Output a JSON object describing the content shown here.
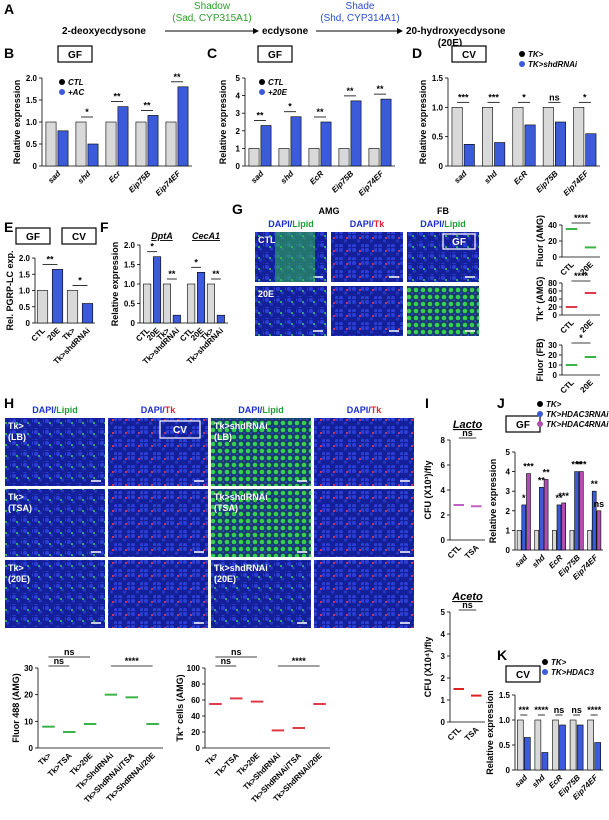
{
  "panel_A": {
    "letter": "A",
    "start": "2-deoxyecdysone",
    "enzyme1_name": "Shadow",
    "enzyme1_detail": "(Sad, CYP315A1)",
    "mid": "ecdysone",
    "enzyme2_name": "Shade",
    "enzyme2_detail": "(Shd, CYP314A1)",
    "end": "20-hydroxyecdysone",
    "end_abbr": "(20E)"
  },
  "panel_G_images": {
    "letter": "G",
    "region1": "AMG",
    "region2": "FB",
    "columns": [
      "DAPI/Lipid",
      "DAPI/Tk",
      "DAPI/Lipid"
    ],
    "rows": [
      "CTL",
      "20E"
    ],
    "tag": "GF"
  },
  "panel_H_images": {
    "letter": "H",
    "columns": [
      "DAPI/Lipid",
      "DAPI/Tk",
      "DAPI/Lipid",
      "DAPI/Tk"
    ],
    "rows_left": [
      [
        "Tk>",
        "(LB)"
      ],
      [
        "Tk>",
        "(TSA)"
      ],
      [
        "Tk>",
        "(20E)"
      ]
    ],
    "rows_right": [
      [
        "Tk>shdRNAi",
        "(LB)"
      ],
      [
        "Tk>shdRNAi",
        "(TSA)"
      ],
      [
        "Tk>shdRNAi",
        "(20E)"
      ]
    ],
    "tag": "CV"
  },
  "chart_data": [
    {
      "type": "bar",
      "letter": "B",
      "tags": [
        "GF"
      ],
      "ylabel": "Relative expression",
      "categories": [
        "sad",
        "shd",
        "Ecr",
        "Eip75B",
        "Eip74EF"
      ],
      "series": [
        {
          "name": "CTL",
          "color": "#d9d9d9",
          "values": [
            1,
            1,
            1,
            1,
            1
          ]
        },
        {
          "name": "+AC",
          "color": "#3b5bdb",
          "values": [
            0.8,
            0.5,
            1.35,
            1.15,
            1.8
          ]
        }
      ],
      "sig": [
        "",
        "*",
        "**",
        "**",
        "**"
      ],
      "ylim": [
        0,
        2
      ],
      "yticks": [
        0,
        0.5,
        {
          "value": 1,
          "label": "1.0"
        },
        1.5,
        {
          "value": 2,
          "label": "2.0"
        }
      ]
    },
    {
      "type": "bar",
      "letter": "C",
      "tags": [
        "GF"
      ],
      "ylabel": "Relative expression",
      "categories": [
        "sad",
        "shd",
        "EcR",
        "Eip75B",
        "Eip74EF"
      ],
      "series": [
        {
          "name": "CTL",
          "color": "#d9d9d9",
          "values": [
            1,
            1,
            1,
            1,
            1
          ]
        },
        {
          "name": "+20E",
          "color": "#3b5bdb",
          "values": [
            2.3,
            2.8,
            2.5,
            3.7,
            3.8
          ]
        }
      ],
      "sig": [
        "**",
        "*",
        "**",
        "**",
        "**"
      ],
      "ylim": [
        0,
        5
      ],
      "yticks": [
        0,
        1,
        2,
        3,
        4,
        5
      ]
    },
    {
      "type": "bar",
      "letter": "D",
      "tags": [
        "CV"
      ],
      "ylabel": "Relative expression",
      "categories": [
        "sad",
        "shd",
        "EcR",
        "Eip75B",
        "Eip74EF"
      ],
      "series": [
        {
          "name": "TK>",
          "color": "#d9d9d9",
          "values": [
            1,
            1,
            1,
            1,
            1
          ]
        },
        {
          "name": "TK>shdRNAi",
          "color": "#3b5bdb",
          "values": [
            0.37,
            0.4,
            0.7,
            0.75,
            0.55
          ]
        }
      ],
      "sig": [
        "***",
        "***",
        "*",
        "ns",
        "*"
      ],
      "ylim": [
        0,
        1.5
      ],
      "yticks": [
        0,
        0.5,
        {
          "value": 1,
          "label": "1.0"
        },
        1.5
      ]
    },
    {
      "type": "bar",
      "letter": "E",
      "tags": [
        "GF",
        "CV"
      ],
      "ylabel": "Rel. PGRP-LC exp.",
      "categories": [
        "CTL",
        "20E",
        "Tk>",
        "Tk>shdRNAi"
      ],
      "values": [
        1,
        1.65,
        1,
        0.6
      ],
      "colors": [
        "#d9d9d9",
        "#3b5bdb",
        "#d9d9d9",
        "#3b5bdb"
      ],
      "sig": [
        "**",
        "*"
      ],
      "ylim": [
        0,
        2
      ],
      "yticks": [
        0,
        0.5,
        {
          "value": 1,
          "label": "1.0"
        },
        1.5,
        {
          "value": 2,
          "label": "2.0"
        }
      ]
    },
    {
      "type": "bar",
      "letter": "F",
      "tags": [],
      "ylabel": "Relative expression",
      "categories": [
        "CTL",
        "20E",
        "Tk>",
        "Tk>shdRNAi"
      ],
      "colors": [
        "#d9d9d9",
        "#3b5bdb",
        "#d9d9d9",
        "#3b5bdb"
      ],
      "groups": [
        {
          "name": "DptA",
          "values": [
            1,
            1.7,
            1,
            0.2
          ],
          "sig": [
            "*",
            "**"
          ]
        },
        {
          "name": "CecA1",
          "values": [
            1,
            1.3,
            1,
            0.2
          ],
          "sig": [
            "*",
            "**"
          ]
        }
      ],
      "ylim": [
        0,
        2
      ],
      "yticks": [
        0,
        0.5,
        {
          "value": 1,
          "label": "1.0"
        },
        1.5,
        {
          "value": 2,
          "label": "2.0"
        }
      ]
    },
    {
      "type": "strip",
      "tags": [],
      "ylabel": "Fluor (AMG)",
      "categories": [
        "CTL",
        "20E"
      ],
      "values": [
        35,
        12
      ],
      "color": "#3cb34a",
      "sig": [
        "****"
      ],
      "ylim": [
        0,
        40
      ],
      "yticks": [
        0,
        20,
        40
      ]
    },
    {
      "type": "strip",
      "tags": [],
      "ylabel": "Tk⁺ (AMG)",
      "categories": [
        "CTL",
        "20E"
      ],
      "values": [
        20,
        55
      ],
      "color": "#e0394a",
      "sig": [
        "****"
      ],
      "ylim": [
        0,
        80
      ],
      "yticks": [
        0,
        20,
        40,
        60,
        80
      ]
    },
    {
      "type": "strip",
      "tags": [],
      "ylabel": "Fluor (FB)",
      "categories": [
        "CTL",
        "20E"
      ],
      "values": [
        10,
        18
      ],
      "color": "#3cb34a",
      "sig": [
        "*"
      ],
      "ylim": [
        0,
        30
      ],
      "yticks": [
        0,
        10,
        20,
        30
      ]
    },
    {
      "type": "strip",
      "tags": [],
      "ylabel": "Fluor 488 (AMG)",
      "categories": [
        "Tk>",
        "Tk>TSA",
        "Tk>20E",
        "Tk>ShdRNAi",
        "Tk>ShdRNAi/TSA",
        "Tk>ShdRNAi/20E"
      ],
      "values": [
        8,
        6,
        9,
        20,
        19,
        9
      ],
      "color": "#3cb34a",
      "sig": [
        "ns",
        "ns",
        "****"
      ],
      "ylim": [
        0,
        30
      ],
      "yticks": [
        0,
        10,
        20,
        30
      ]
    },
    {
      "type": "strip",
      "tags": [],
      "ylabel": "Tk⁺ cells (AMG)",
      "categories": [
        "Tk>",
        "Tk>TSA",
        "Tk>20E",
        "Tk>ShdRNAi",
        "Tk>ShdRNAi/TSA",
        "Tk>ShdRNAi/20E"
      ],
      "values": [
        55,
        62,
        58,
        22,
        25,
        55
      ],
      "color": "#e0394a",
      "sig": [
        "ns",
        "ns",
        "****"
      ],
      "ylim": [
        0,
        100
      ],
      "yticks": [
        0,
        20,
        40,
        60,
        80,
        100
      ]
    },
    {
      "type": "strip",
      "letter": "I",
      "tags": [],
      "title": "Lacto",
      "ylabel": "CFU (X10³)/fly",
      "categories": [
        "CTL",
        "TSA"
      ],
      "values": [
        2.8,
        2.7
      ],
      "color": "#c060c0",
      "sig": [
        "ns"
      ],
      "ylim": [
        0,
        8
      ],
      "yticks": [
        0,
        2,
        4,
        6,
        8
      ]
    },
    {
      "type": "strip",
      "tags": [],
      "title": "Aceto",
      "ylabel": "CFU (X10⁴)/fly",
      "categories": [
        "CTL",
        "TSA"
      ],
      "values": [
        1.5,
        1.2
      ],
      "color": "#e02020",
      "sig": [
        "ns"
      ],
      "ylim": [
        0,
        5
      ],
      "yticks": [
        0,
        1,
        2,
        3,
        4,
        5
      ]
    },
    {
      "type": "bar",
      "letter": "J",
      "tags": [
        "GF"
      ],
      "ylabel": "Relative expression",
      "categories": [
        "sad",
        "shd",
        "EcR",
        "Eip75B",
        "Eip74EF"
      ],
      "series": [
        {
          "name": "TK>",
          "color": "#d9d9d9",
          "values": [
            1,
            1,
            1,
            1,
            1
          ]
        },
        {
          "name": "TK>HDAC3RNAi",
          "color": "#3b5bdb",
          "values": [
            2.3,
            3.2,
            2.3,
            4,
            3
          ]
        },
        {
          "name": "TK>HDAC4RNAi",
          "color": "#b04fb0",
          "values": [
            3.9,
            3.6,
            2.4,
            4,
            2
          ]
        }
      ],
      "sig": [
        [
          "*",
          "***"
        ],
        [
          "**",
          "**"
        ],
        [
          "**",
          "***"
        ],
        [
          "***",
          "***"
        ],
        [
          "**",
          "ns"
        ]
      ],
      "ylim": [
        0,
        5
      ],
      "yticks": [
        0,
        1,
        2,
        3,
        4,
        5
      ]
    },
    {
      "type": "bar",
      "letter": "K",
      "tags": [
        "CV"
      ],
      "ylabel": "Relative expression",
      "categories": [
        "sad",
        "shd",
        "EcR",
        "Eip75B",
        "Eip74EF"
      ],
      "series": [
        {
          "name": "TK>",
          "color": "#d9d9d9",
          "values": [
            1,
            1,
            1,
            1,
            1
          ]
        },
        {
          "name": "TK>HDAC3",
          "color": "#3b5bdb",
          "values": [
            0.65,
            0.35,
            0.9,
            0.9,
            0.55
          ]
        }
      ],
      "sig": [
        "***",
        "****",
        "ns",
        "ns",
        "****"
      ],
      "ylim": [
        0,
        1.5
      ],
      "yticks": [
        0,
        0.5,
        {
          "value": 1,
          "label": "1.0"
        },
        1.5
      ]
    }
  ]
}
